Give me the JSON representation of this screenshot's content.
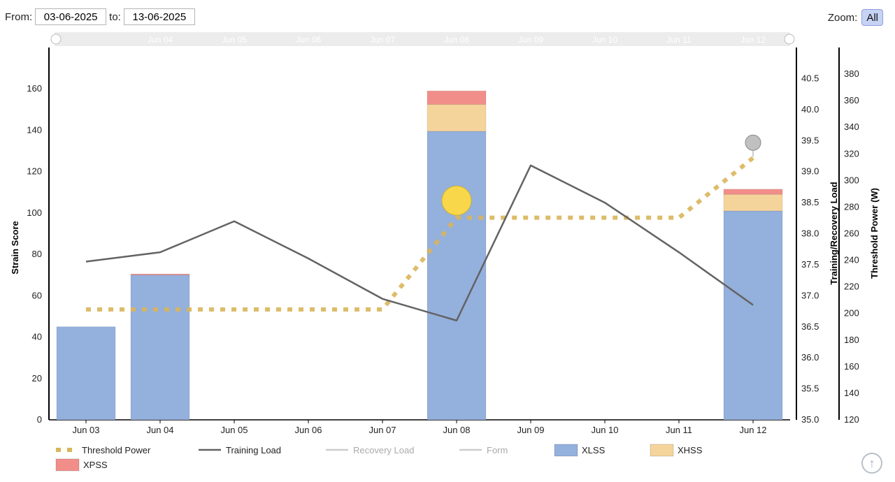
{
  "range": {
    "from_label": "From:",
    "from_value": "03-06-2025",
    "to_label": "to:",
    "to_value": "13-06-2025"
  },
  "zoom": {
    "label": "Zoom:",
    "button_label": "All"
  },
  "navigator_labels": [
    "Jun 04",
    "Jun 05",
    "Jun 06",
    "Jun 07",
    "Jun 08",
    "Jun 09",
    "Jun 10",
    "Jun 11",
    "Jun 12"
  ],
  "icons": {
    "scroll_top": "arrow-up-icon"
  },
  "chart_data": {
    "type": "bar",
    "categories": [
      "Jun 03",
      "Jun 04",
      "Jun 05",
      "Jun 06",
      "Jun 07",
      "Jun 08",
      "Jun 09",
      "Jun 10",
      "Jun 11",
      "Jun 12"
    ],
    "y_left": {
      "label": "Strain Score",
      "min": 0,
      "max": 180,
      "ticks": [
        0,
        20,
        40,
        60,
        80,
        100,
        120,
        140,
        160
      ]
    },
    "y_mid": {
      "label": "Training/Recovery Load",
      "min": 35.0,
      "max": 41.0,
      "ticks": [
        "35.0",
        "35.5",
        "36.0",
        "36.5",
        "37.0",
        "37.5",
        "38.0",
        "38.5",
        "39.0",
        "39.5",
        "40.0",
        "40.5"
      ]
    },
    "y_right": {
      "label": "Threshold Power (W)",
      "min": 120,
      "max": 400,
      "ticks": [
        120,
        140,
        160,
        180,
        200,
        220,
        240,
        260,
        280,
        300,
        320,
        340,
        360,
        380
      ]
    },
    "series": [
      {
        "name": "XLSS",
        "kind": "bar",
        "axis": "left",
        "color": "#94b0dc",
        "values": [
          45,
          70,
          0,
          0,
          0,
          139.5,
          0,
          0,
          0,
          101
        ]
      },
      {
        "name": "XHSS",
        "kind": "bar",
        "axis": "left",
        "color": "#f5d49c",
        "values": [
          0,
          0,
          0,
          0,
          0,
          13,
          0,
          0,
          0,
          8
        ]
      },
      {
        "name": "XPSS",
        "kind": "bar",
        "axis": "left",
        "color": "#f28e8a",
        "values": [
          0,
          0.5,
          0,
          0,
          0,
          6.5,
          0,
          0,
          0,
          2.5
        ]
      },
      {
        "name": "Threshold Power",
        "kind": "dotted-line",
        "axis": "right",
        "color": "#d9b55a",
        "values": [
          203,
          203,
          203,
          203,
          203,
          272,
          272,
          272,
          272,
          317
        ]
      },
      {
        "name": "Training Load",
        "kind": "line",
        "axis": "mid",
        "color": "#636363",
        "values": [
          37.55,
          37.7,
          38.2,
          37.6,
          36.95,
          36.6,
          39.1,
          38.5,
          37.7,
          36.85
        ]
      }
    ],
    "legend": [
      {
        "name": "Threshold Power",
        "symbol": "dotted",
        "color": "#d9b55a",
        "active": true
      },
      {
        "name": "Training Load",
        "symbol": "line",
        "color": "#636363",
        "active": true
      },
      {
        "name": "Recovery Load",
        "symbol": "line",
        "color": "#cccccc",
        "active": false
      },
      {
        "name": "Form",
        "symbol": "line",
        "color": "#cccccc",
        "active": false
      },
      {
        "name": "XLSS",
        "symbol": "box",
        "color": "#94b0dc",
        "active": true
      },
      {
        "name": "XHSS",
        "symbol": "box",
        "color": "#f5d49c",
        "active": true
      },
      {
        "name": "XPSS",
        "symbol": "box",
        "color": "#f28e8a",
        "active": true
      }
    ],
    "markers": [
      {
        "category": "Jun 08",
        "axis": "left",
        "value": 106,
        "color": "#f8d84a",
        "kind": "event-large"
      },
      {
        "category": "Jun 12",
        "axis": "left",
        "value": 134,
        "color": "#c0c0c0",
        "kind": "event-pin"
      }
    ],
    "legend_position": "bottom",
    "grid": false
  }
}
